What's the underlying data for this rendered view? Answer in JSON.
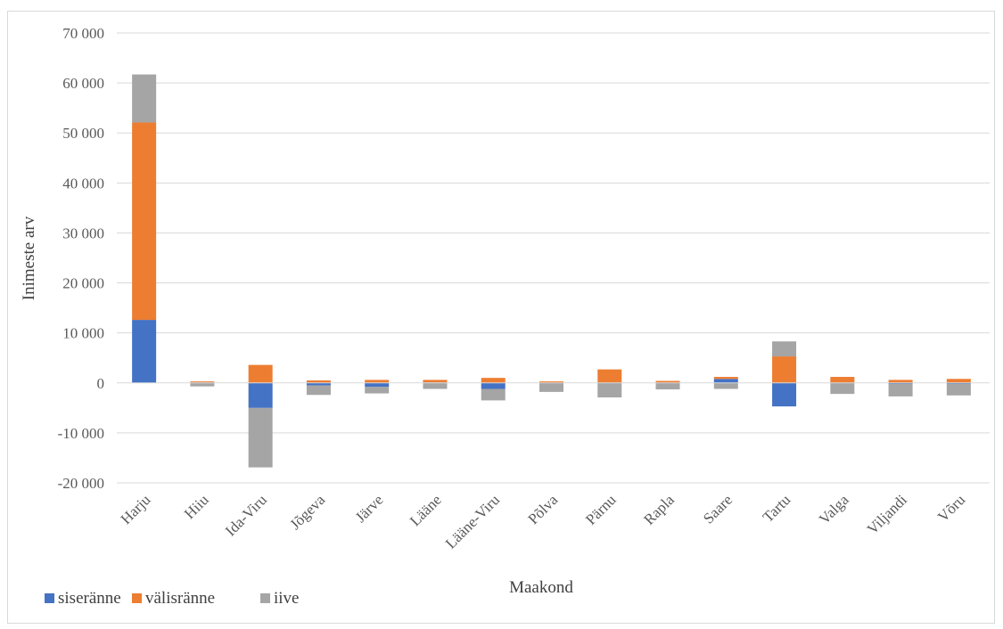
{
  "chart_data": {
    "type": "bar",
    "stacked": true,
    "title": "",
    "xlabel": "Maakond",
    "ylabel": "Inimeste arv",
    "ylim": [
      -20000,
      70000
    ],
    "yticks": [
      -20000,
      -10000,
      0,
      10000,
      20000,
      30000,
      40000,
      50000,
      60000,
      70000
    ],
    "ytick_labels": [
      "-20 000",
      "-10 000",
      "0",
      "10 000",
      "20 000",
      "30 000",
      "40 000",
      "50 000",
      "60 000",
      "70 000"
    ],
    "grid": true,
    "legend_position": "bottom-left",
    "categories": [
      "Harju",
      "Hiiu",
      "Ida-Viru",
      "Jõgeva",
      "Järve",
      "Lääne",
      "Lääne-Viru",
      "Põlva",
      "Pärnu",
      "Rapla",
      "Saare",
      "Tartu",
      "Valga",
      "Viljandi",
      "Võru"
    ],
    "series": [
      {
        "name": "siseränne",
        "color": "#4472c4",
        "values": [
          12600,
          100,
          -5000,
          -500,
          -800,
          100,
          -1200,
          -100,
          -100,
          -100,
          800,
          -4700,
          -100,
          -200,
          -200
        ]
      },
      {
        "name": "välisränne",
        "color": "#ed7d31",
        "values": [
          39500,
          200,
          3600,
          500,
          600,
          500,
          1000,
          300,
          2700,
          400,
          400,
          5300,
          1200,
          600,
          800
        ]
      },
      {
        "name": "iive",
        "color": "#a5a5a5",
        "values": [
          9600,
          -700,
          -11900,
          -1900,
          -1300,
          -1200,
          -2300,
          -1700,
          -2800,
          -1200,
          -1200,
          3000,
          -2100,
          -2500,
          -2300
        ]
      }
    ]
  }
}
